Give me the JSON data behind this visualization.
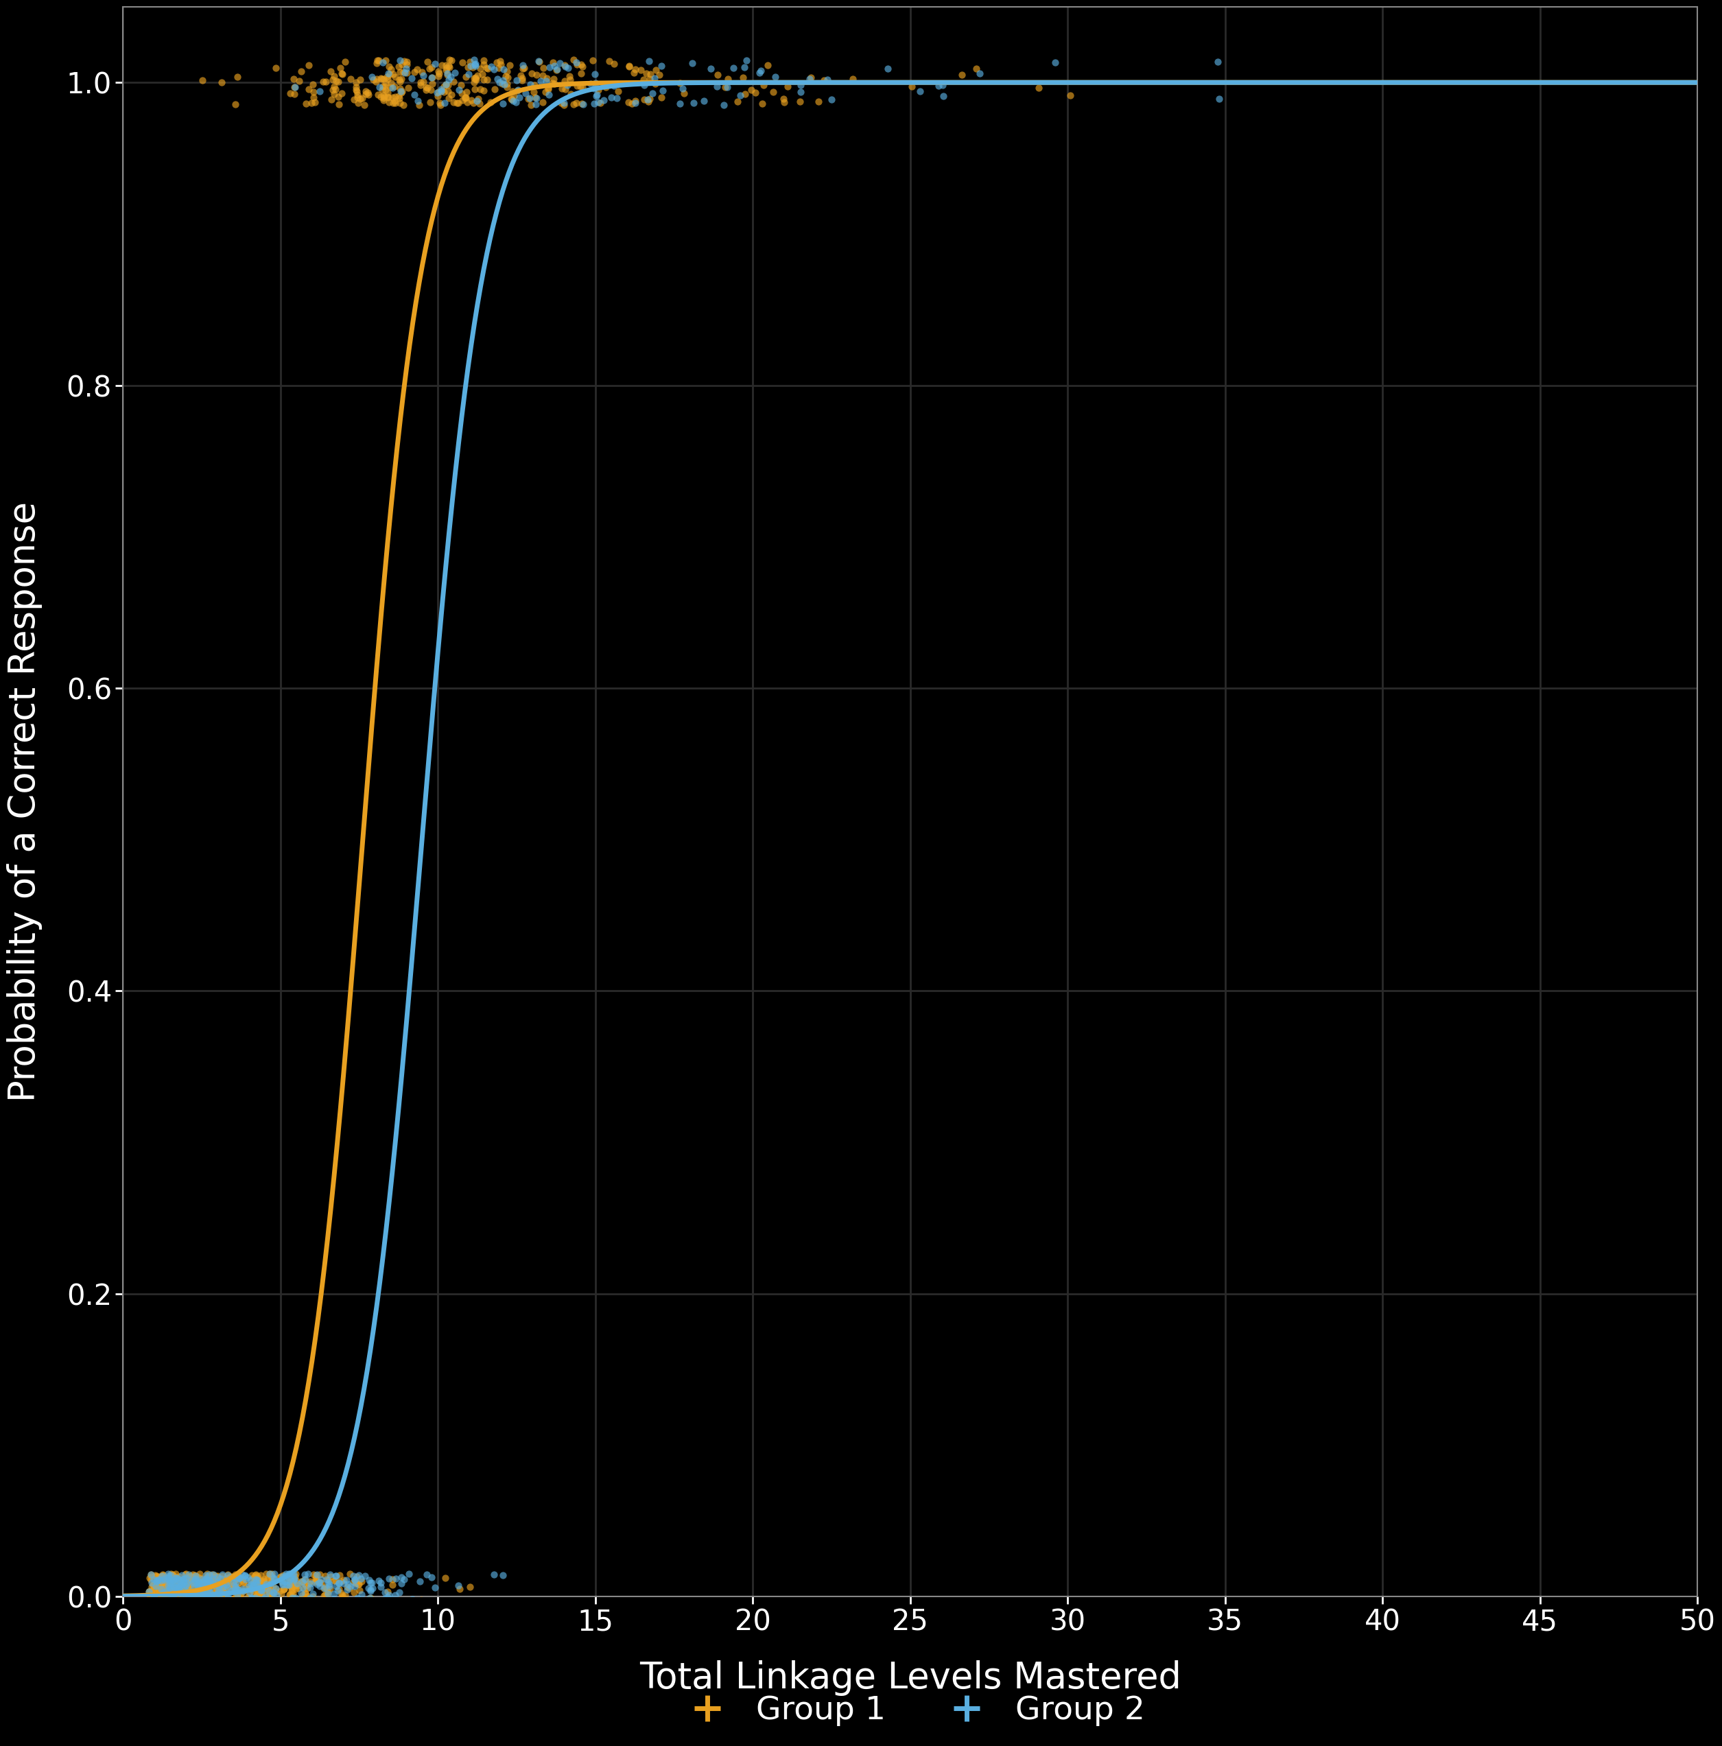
{
  "xlabel": "Total Linkage Levels Mastered",
  "ylabel": "Probability of a Correct Response",
  "background_color": "#000000",
  "axes_facecolor": "#000000",
  "grid_color": "#2a2a2a",
  "text_color": "#ffffff",
  "spine_color": "#888888",
  "group1_color": "#E8A020",
  "group2_color": "#5AAFE0",
  "group1_label": "Group 1",
  "group2_label": "Group 2",
  "xlim": [
    0,
    50
  ],
  "ylim": [
    0.0,
    1.05
  ],
  "logistic_group1_b0": 8.0,
  "logistic_group1_b1": 1.05,
  "logistic_group2_b0": 9.5,
  "logistic_group2_b1": 1.0,
  "n_group1": 1200,
  "n_group2": 600,
  "seed1": 42,
  "seed2": 77
}
